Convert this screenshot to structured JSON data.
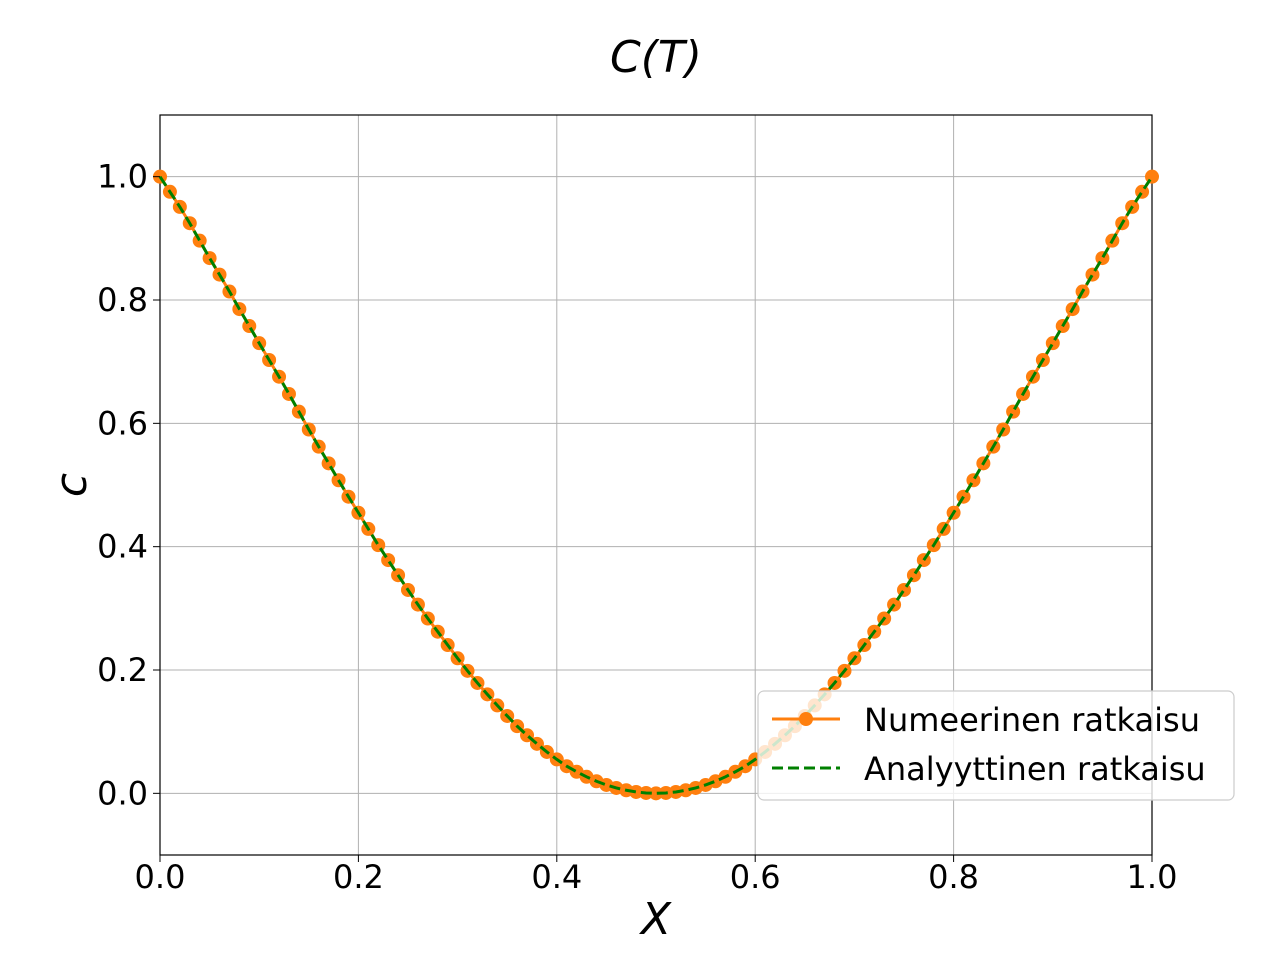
{
  "chart_data": {
    "type": "line",
    "title": "C(T)",
    "xlabel": "X",
    "ylabel": "c",
    "xlim": [
      0.0,
      1.0
    ],
    "ylim": [
      -0.1,
      1.1
    ],
    "xticks": [
      "0.0",
      "0.2",
      "0.4",
      "0.6",
      "0.8",
      "1.0"
    ],
    "yticks": [
      "0.0",
      "0.2",
      "0.4",
      "0.6",
      "0.8",
      "1.0"
    ],
    "grid": true,
    "legend_position": "lower-right",
    "x_samples": [
      0.0,
      0.01,
      0.02,
      0.03,
      0.04,
      0.05,
      0.06,
      0.07,
      0.08,
      0.09,
      0.1,
      0.11,
      0.12,
      0.13,
      0.14,
      0.15,
      0.16,
      0.17,
      0.18,
      0.19,
      0.2,
      0.21,
      0.22,
      0.23,
      0.24,
      0.25,
      0.26,
      0.27,
      0.28,
      0.29,
      0.3,
      0.31,
      0.32,
      0.33,
      0.34,
      0.35,
      0.36,
      0.37,
      0.38,
      0.39,
      0.4,
      0.41,
      0.42,
      0.43,
      0.44,
      0.45,
      0.46,
      0.47,
      0.48,
      0.49,
      0.5,
      0.51,
      0.52,
      0.53,
      0.54,
      0.55,
      0.56,
      0.57,
      0.58,
      0.59,
      0.6,
      0.61,
      0.62,
      0.63,
      0.64,
      0.65,
      0.66,
      0.67,
      0.68,
      0.69,
      0.7,
      0.71,
      0.72,
      0.73,
      0.74,
      0.75,
      0.76,
      0.77,
      0.78,
      0.79,
      0.8,
      0.81,
      0.82,
      0.83,
      0.84,
      0.85,
      0.86,
      0.87,
      0.88,
      0.89,
      0.9,
      0.91,
      0.92,
      0.93,
      0.94,
      0.95,
      0.96,
      0.97,
      0.98,
      0.99,
      1.0
    ],
    "series": [
      {
        "name": "Numeerinen ratkaisu",
        "color": "#ff7f0e",
        "style": "solid-with-markers",
        "y": [
          1.0,
          0.9755,
          0.951,
          0.9245,
          0.8962,
          0.868,
          0.8412,
          0.8137,
          0.7853,
          0.7578,
          0.73,
          0.7027,
          0.6756,
          0.6476,
          0.619,
          0.59,
          0.5622,
          0.5351,
          0.5077,
          0.481,
          0.455,
          0.4288,
          0.4025,
          0.3782,
          0.3537,
          0.3298,
          0.3061,
          0.2835,
          0.2621,
          0.2405,
          0.219,
          0.1986,
          0.179,
          0.1605,
          0.1426,
          0.1255,
          0.109,
          0.0942,
          0.0803,
          0.0671,
          0.055,
          0.044,
          0.035,
          0.0268,
          0.0196,
          0.0136,
          0.0087,
          0.005,
          0.0022,
          0.0006,
          0.0,
          0.0006,
          0.0022,
          0.005,
          0.0087,
          0.0136,
          0.0196,
          0.0268,
          0.035,
          0.044,
          0.055,
          0.0671,
          0.0803,
          0.0942,
          0.109,
          0.1255,
          0.1426,
          0.1605,
          0.179,
          0.1986,
          0.219,
          0.2405,
          0.2621,
          0.2835,
          0.3061,
          0.3298,
          0.3537,
          0.3782,
          0.4025,
          0.4288,
          0.455,
          0.481,
          0.5077,
          0.5351,
          0.5622,
          0.59,
          0.619,
          0.6476,
          0.6756,
          0.7027,
          0.73,
          0.7578,
          0.7853,
          0.8137,
          0.8412,
          0.868,
          0.8962,
          0.9245,
          0.951,
          0.9755,
          1.0
        ]
      },
      {
        "name": "Analyyttinen ratkaisu",
        "color": "#008000",
        "style": "dashed",
        "y": "same-as-numeric"
      }
    ]
  }
}
